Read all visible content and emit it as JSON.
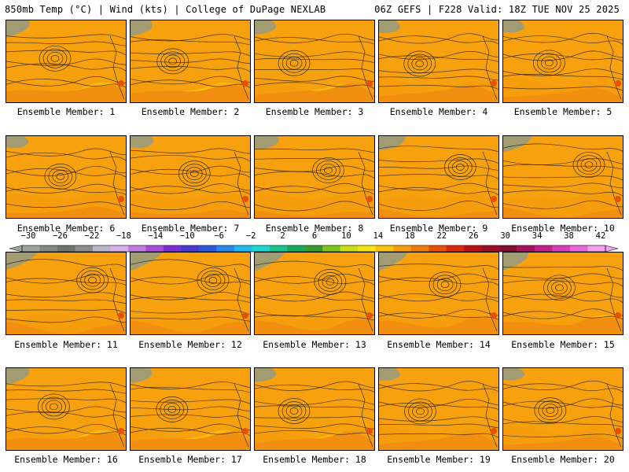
{
  "header": {
    "left": "850mb Temp (°C) | Wind (kts) | College of DuPage NEXLAB",
    "right": "06Z GEFS | F228 Valid: 18Z TUE NOV 25 2025"
  },
  "panels": [
    {
      "label": "Ensemble Member: 1"
    },
    {
      "label": "Ensemble Member: 2"
    },
    {
      "label": "Ensemble Member: 3"
    },
    {
      "label": "Ensemble Member: 4"
    },
    {
      "label": "Ensemble Member: 5"
    },
    {
      "label": "Ensemble Member: 6"
    },
    {
      "label": "Ensemble Member: 7"
    },
    {
      "label": "Ensemble Member: 8"
    },
    {
      "label": "Ensemble Member: 9"
    },
    {
      "label": "Ensemble Member: 10"
    },
    {
      "label": "Ensemble Member: 11"
    },
    {
      "label": "Ensemble Member: 12"
    },
    {
      "label": "Ensemble Member: 13"
    },
    {
      "label": "Ensemble Member: 14"
    },
    {
      "label": "Ensemble Member: 15"
    },
    {
      "label": "Ensemble Member: 16"
    },
    {
      "label": "Ensemble Member: 17"
    },
    {
      "label": "Ensemble Member: 18"
    },
    {
      "label": "Ensemble Member: 19"
    },
    {
      "label": "Ensemble Member: 20"
    }
  ],
  "colorbar": {
    "labels": [
      "−30",
      "−26",
      "−22",
      "−18",
      "−14",
      "−10",
      "−6",
      "−2",
      "2",
      "6",
      "10",
      "14",
      "18",
      "22",
      "26",
      "30",
      "34",
      "38",
      "42"
    ],
    "colors": [
      "#9aa79a",
      "#7f8a80",
      "#6b7569",
      "#8d8d8d",
      "#b6b6c8",
      "#d8b0e8",
      "#c27de0",
      "#a74ed8",
      "#7a2fd0",
      "#4a3bd0",
      "#2f58d8",
      "#2a88e8",
      "#21b8ee",
      "#1fd5d0",
      "#19c48e",
      "#1aa85a",
      "#3a9a30",
      "#7fc320",
      "#c8dc18",
      "#f6e312",
      "#f8c010",
      "#f59e0d",
      "#f07a0a",
      "#e8500a",
      "#d8280c",
      "#b8101a",
      "#980f24",
      "#80102e",
      "#a4145a",
      "#c2218a",
      "#d840b8",
      "#e668d8",
      "#f0a0ec"
    ]
  }
}
